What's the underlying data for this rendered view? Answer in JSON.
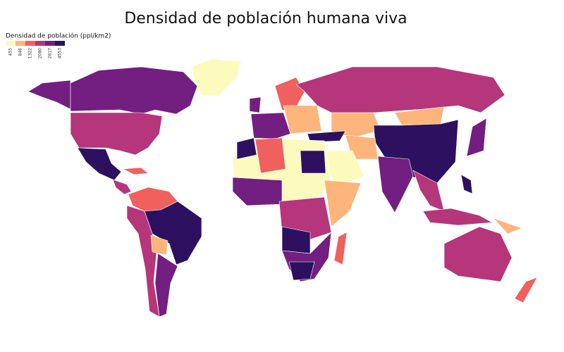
{
  "title": "Densidad de población humana viva",
  "legend": {
    "title": "Densidad de población (ppl/km2)",
    "ticks": [
      455,
      846,
      1322,
      2080,
      2817,
      4553
    ],
    "colors": [
      "#fcfbbd",
      "#fdb57c",
      "#f0605d",
      "#b5367a",
      "#721f81",
      "#2d1160"
    ]
  }
}
